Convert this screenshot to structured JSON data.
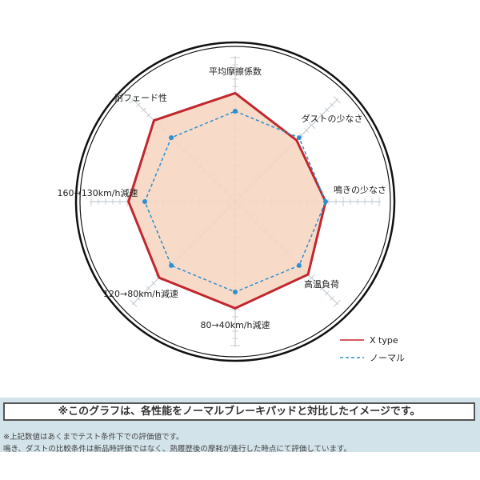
{
  "chart_data": {
    "type": "radar",
    "axes": [
      "平均摩擦係数",
      "ダストの少なさ",
      "鳴きの少なさ",
      "高温負荷",
      "80→40km/h減速",
      "120→80km/h減速",
      "160→130km/h減速",
      "耐フェード性"
    ],
    "series": [
      {
        "name": "X type",
        "values": [
          120,
          96,
          100,
          114,
          118,
          119,
          118,
          127
        ],
        "color": "#c1272d",
        "style": "solid"
      },
      {
        "name": "ノーマル",
        "values": [
          100,
          100,
          100,
          100,
          100,
          100,
          100,
          100
        ],
        "color": "#2b8fd0",
        "style": "dashed"
      }
    ],
    "fill_color": "#f6d6c2",
    "grid": "axis ticks"
  },
  "notes": {
    "headline": "※このグラフは、各性能をノーマルブレーキパッドと対比したイメージです。",
    "line1": "※上記数値はあくまでテスト条件下での評価値です。",
    "line2": "鳴き、ダストの比較条件は新品時評価ではなく、熱履歴後の摩耗が進行した時点にて評価しています。"
  }
}
